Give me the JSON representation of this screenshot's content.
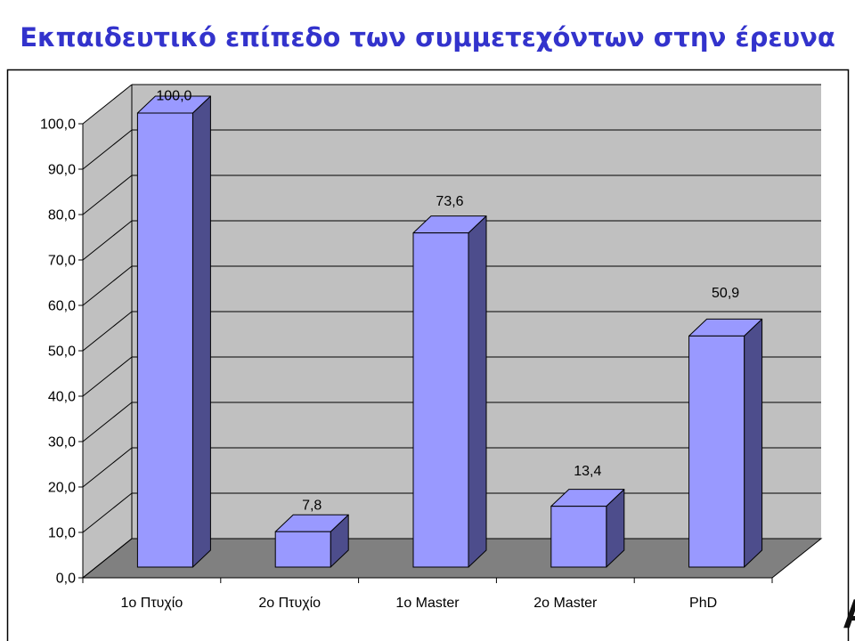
{
  "page": {
    "edge_fragment": "A"
  },
  "chart_data": {
    "type": "bar",
    "three_d": true,
    "title": "Εκπαιδευτικό επίπεδο των συμμετεχόντων στην έρευνα",
    "categories": [
      "1ο Πτυχίο",
      "2ο Πτυχίο",
      "1ο Master",
      "2ο Master",
      "PhD"
    ],
    "values": [
      100.0,
      7.8,
      73.6,
      13.4,
      50.9
    ],
    "data_labels": [
      "100,0",
      "7,8",
      "73,6",
      "13,4",
      "50,9"
    ],
    "ylim": [
      0,
      100
    ],
    "y_tick_step": 10,
    "y_tick_labels": [
      "0,0",
      "10,0",
      "20,0",
      "30,0",
      "40,0",
      "50,0",
      "60,0",
      "70,0",
      "80,0",
      "90,0",
      "100,0"
    ],
    "grid": true,
    "legend": "none",
    "colors": {
      "title": "#3333CC",
      "bar_front": "#9999FF",
      "bar_top": "#9999FF",
      "bar_side": "#4D4D8C",
      "walls": "#C0C0C0",
      "floor": "#808080",
      "gridlines": "#000000",
      "axes": "#000000"
    }
  }
}
